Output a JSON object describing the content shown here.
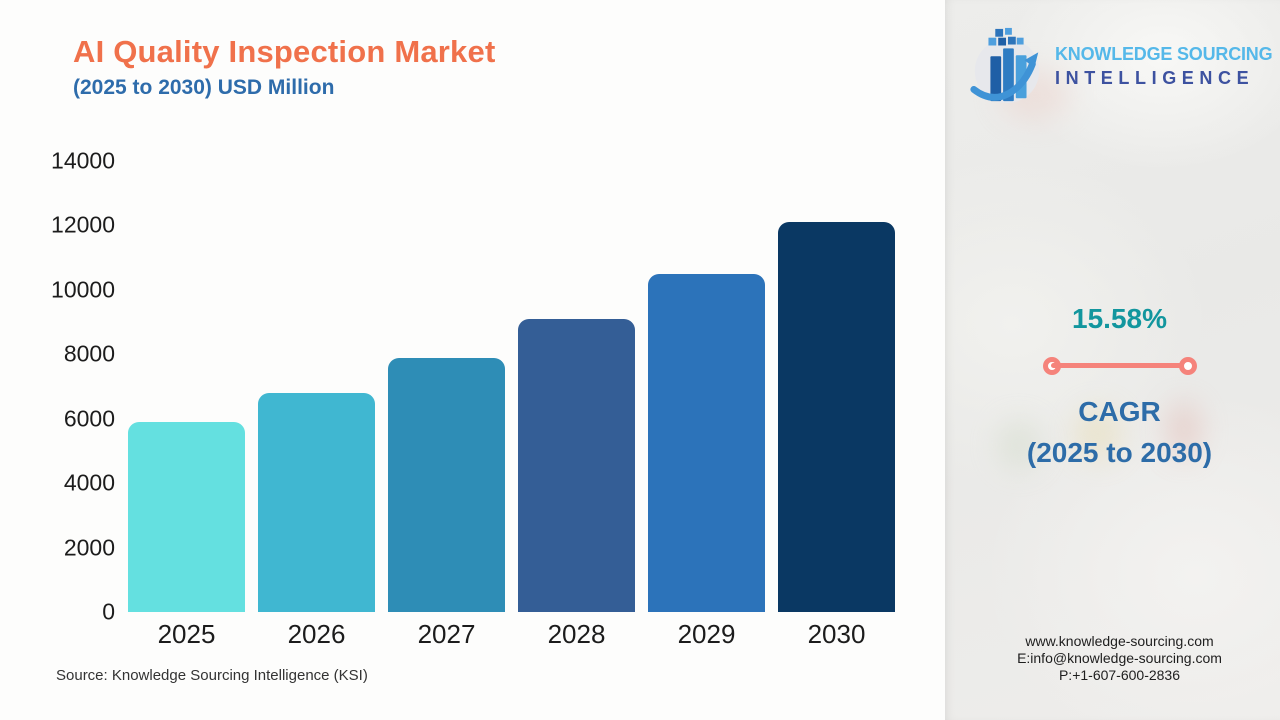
{
  "header": {
    "title": "AI Quality Inspection Market",
    "subtitle": "(2025 to 2030) USD Million"
  },
  "logo": {
    "line1": "KNOWLEDGE SOURCING",
    "line2": "INTELLIGENCE",
    "icon": "growth-bars-globe-icon",
    "line1_color": "#55b8e9",
    "line2_color": "#3d52a0"
  },
  "chart_data": {
    "type": "bar",
    "title": "AI Quality Inspection Market",
    "subtitle": "(2025 to 2030) USD Million",
    "categories": [
      "2025",
      "2026",
      "2027",
      "2028",
      "2029",
      "2030"
    ],
    "values": [
      5900,
      6800,
      7900,
      9100,
      10500,
      12100
    ],
    "bar_colors": [
      "#64e0e0",
      "#40b7d1",
      "#2e8db6",
      "#345e96",
      "#2c73ba",
      "#0a3863"
    ],
    "xlabel": "",
    "ylabel": "",
    "ylim": [
      0,
      14000
    ],
    "yticks": [
      0,
      2000,
      4000,
      6000,
      8000,
      10000,
      12000,
      14000
    ],
    "grid": false,
    "legend": false
  },
  "cagr": {
    "value": "15.58%",
    "label_line1": "CAGR",
    "label_line2": "(2025 to 2030)",
    "value_color": "#12969e",
    "label_color": "#2d6ca8",
    "accent_color": "#f5837b"
  },
  "source": {
    "text": "Source: Knowledge Sourcing Intelligence (KSI)"
  },
  "contact": {
    "website": "www.knowledge-sourcing.com",
    "email": "E:info@knowledge-sourcing.com",
    "phone": "P:+1-607-600-2836"
  }
}
